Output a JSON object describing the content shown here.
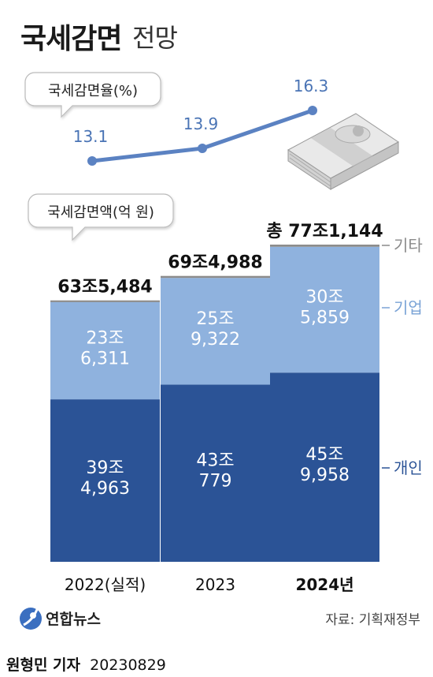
{
  "title": {
    "main": "국세감면",
    "sub": "전망"
  },
  "rate_label": "국세감면율(%)",
  "amount_label": "국세감면액(억 원)",
  "chart_data": [
    {
      "type": "line",
      "title": "국세감면율(%)",
      "x": [
        "2022(실적)",
        "2023",
        "2024년"
      ],
      "series": [
        {
          "values": [
            13.1,
            13.9,
            16.3
          ],
          "labels": [
            "13.1",
            "13.9",
            "16.3"
          ]
        }
      ],
      "color": "#5b82c2"
    },
    {
      "type": "bar",
      "stacked": true,
      "title": "국세감면액(억 원)",
      "categories": [
        "2022(실적)",
        "2023",
        "2024년"
      ],
      "series": [
        {
          "name": "개인",
          "values": [
            394963,
            430779,
            459958
          ],
          "labels": [
            "39조\n4,963",
            "43조\n779",
            "45조\n9,958"
          ],
          "color": "#2b5396"
        },
        {
          "name": "기업",
          "values": [
            236311,
            259322,
            305859
          ],
          "labels": [
            "23조\n6,311",
            "25조\n9,322",
            "30조\n5,859"
          ],
          "color": "#8fb2de"
        },
        {
          "name": "기타",
          "values": [
            4210,
            4887,
            5327
          ],
          "color": "#8c8c8c"
        }
      ],
      "totals": [
        "63조5,484",
        "69조4,988",
        "총 77조1,144"
      ],
      "ylim": [
        0,
        800000
      ]
    }
  ],
  "legend": [
    {
      "label": "기타",
      "color": "#8a8a8a"
    },
    {
      "label": "기업",
      "color": "#7aa3d6"
    },
    {
      "label": "개인",
      "color": "#2b5396"
    }
  ],
  "footer": {
    "logo_text": "연합뉴스",
    "source": "자료: 기획재정부",
    "credit_name": "원형민 기자",
    "credit_date": "20230829"
  },
  "icons": {
    "logo": "yonhap-logo-icon",
    "money": "money-stack-icon"
  }
}
